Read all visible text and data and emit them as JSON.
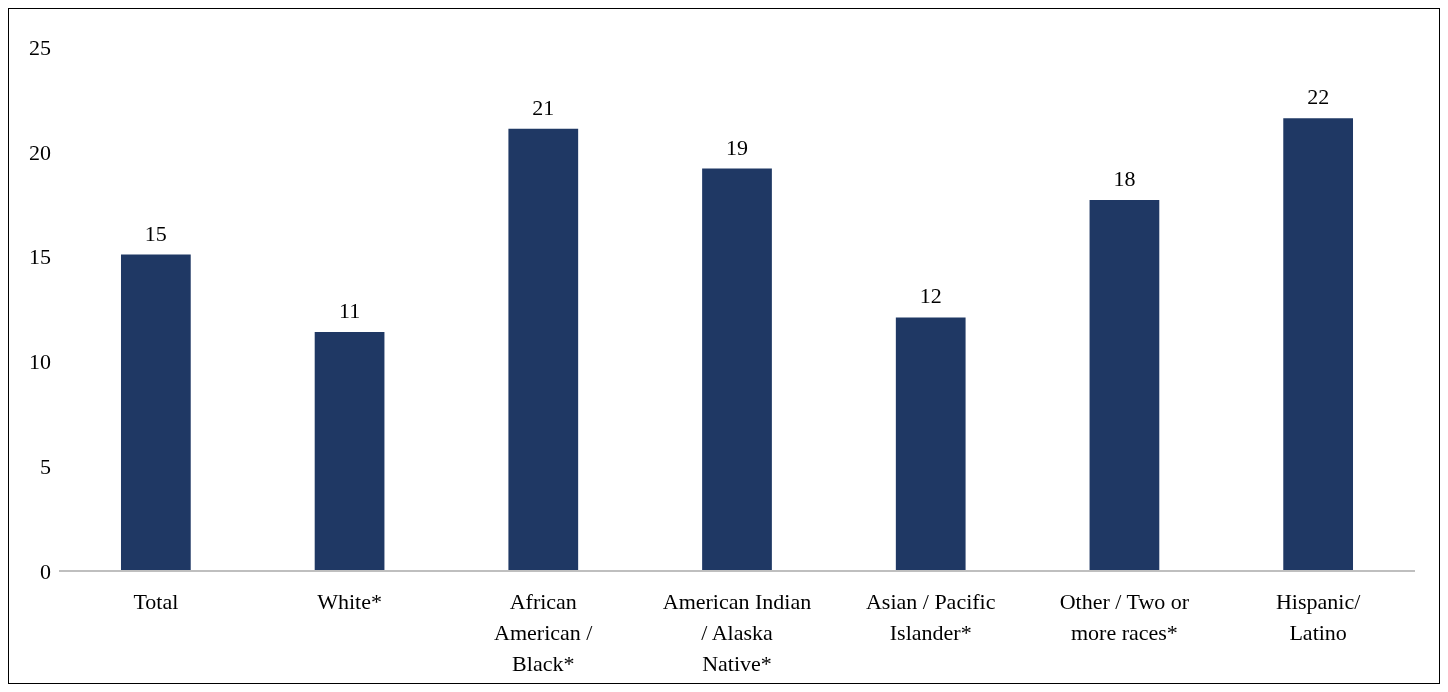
{
  "chart_data": {
    "type": "bar",
    "categories": [
      "Total",
      "White*",
      "African American / Black*",
      "American Indian / Alaska Native*",
      "Asian / Pacific Islander*",
      "Other / Two or more races*",
      "Hispanic/ Latino"
    ],
    "values": [
      15.1,
      11.4,
      21.1,
      19.2,
      12.1,
      17.7,
      21.6
    ],
    "value_labels": [
      "15",
      "11",
      "21",
      "19",
      "12",
      "18",
      "22"
    ],
    "color": "#1f3864",
    "ylim": [
      0,
      25
    ],
    "yticks": [
      0,
      5,
      10,
      15,
      20,
      25
    ],
    "grid": false,
    "legend": false
  }
}
